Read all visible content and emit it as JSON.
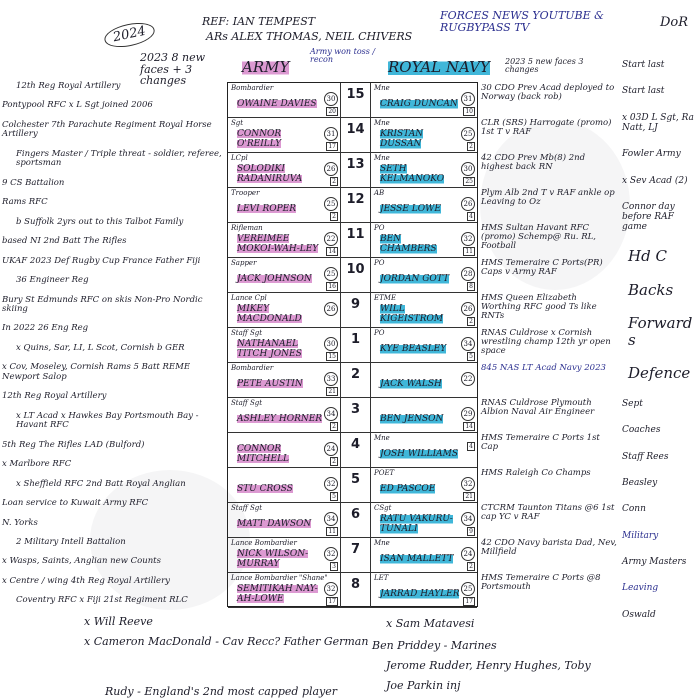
{
  "header": {
    "year": "2024",
    "ref": "REF: IAN TEMPEST",
    "ars": "ARs  ALEX THOMAS, NEIL CHIVERS",
    "broadcast": "FORCES NEWS YOUTUBE & RUGBYPASS TV",
    "army_note": "2023 8 new faces + 3 changes",
    "army_title": "ARMY",
    "army_toss": "Army won toss / recon",
    "navy_title": "ROYAL NAVY",
    "navy_note": "2023 5 new faces 3 changes",
    "dor": "DoR"
  },
  "colors": {
    "army_highlight": "#cd6ebe",
    "navy_highlight": "#1eaad2",
    "ink": "#1d1d2a",
    "blue_ink": "#2b2f8f"
  },
  "rows": [
    {
      "num": "15",
      "army_role": "Bombardier",
      "army_name": "Owaine Davies",
      "army_age": "30",
      "army_cap": "20",
      "navy_role": "Mne",
      "navy_name": "Craig Duncan",
      "navy_age": "31",
      "navy_cap": "10"
    },
    {
      "num": "14",
      "army_role": "Sgt",
      "army_name": "Connor O'Reilly",
      "army_age": "31",
      "army_cap": "17",
      "navy_role": "Mne",
      "navy_name": "Kristan Dussan",
      "navy_age": "25",
      "navy_cap": "2"
    },
    {
      "num": "13",
      "army_role": "LCpl",
      "army_name": "Solodiki Radaniruva",
      "army_age": "26",
      "army_cap": "2",
      "navy_role": "Mne",
      "navy_name": "Seth Kelmanoko",
      "navy_age": "30",
      "navy_cap": "25"
    },
    {
      "num": "12",
      "army_role": "Trooper",
      "army_name": "Levi Roper",
      "army_age": "25",
      "army_cap": "2",
      "navy_role": "AB",
      "navy_name": "Jesse Lowe",
      "navy_age": "26",
      "navy_cap": "4"
    },
    {
      "num": "11",
      "army_role": "Rifleman",
      "army_name": "Vereimee Mokoi-Wah-Ley",
      "army_age": "22",
      "army_cap": "14",
      "navy_role": "PO",
      "navy_name": "Ben Chambers",
      "navy_age": "32",
      "navy_cap": "11"
    },
    {
      "num": "10",
      "army_role": "Sapper",
      "army_name": "Jack Johnson",
      "army_age": "25",
      "army_cap": "16",
      "navy_role": "PO",
      "navy_name": "Jordan Gott",
      "navy_age": "28",
      "navy_cap": "8"
    },
    {
      "num": "9",
      "army_role": "Lance Cpl",
      "army_name": "Mikey MacDonald",
      "army_age": "26",
      "army_cap": "",
      "navy_role": "ETME",
      "navy_name": "Will Kigeistrom",
      "navy_age": "26",
      "navy_cap": "2"
    },
    {
      "num": "1",
      "army_role": "Staff Sgt",
      "army_name": "Nathanael Titch Jones",
      "army_age": "30",
      "army_cap": "15",
      "navy_role": "PO",
      "navy_name": "Kye Beasley",
      "navy_age": "34",
      "navy_cap": "5"
    },
    {
      "num": "2",
      "army_role": "Bombardier",
      "army_name": "Pete Austin",
      "army_age": "33",
      "army_cap": "21",
      "navy_role": "",
      "navy_name": "Jack Walsh",
      "navy_age": "22",
      "navy_cap": ""
    },
    {
      "num": "3",
      "army_role": "Staff Sgt",
      "army_name": "Ashley Horner",
      "army_age": "34",
      "army_cap": "2",
      "navy_role": "",
      "navy_name": "Ben Jenson",
      "navy_age": "29",
      "navy_cap": "14"
    },
    {
      "num": "4",
      "army_role": "",
      "army_name": "Connor Mitchell",
      "army_age": "24",
      "army_cap": "2",
      "navy_role": "Mne",
      "navy_name": "Josh Williams",
      "navy_age": "",
      "navy_cap": "4"
    },
    {
      "num": "5",
      "army_role": "",
      "army_name": "Stu Cross",
      "army_age": "32",
      "army_cap": "5",
      "navy_role": "POET",
      "navy_name": "Ed Pascoe",
      "navy_age": "32",
      "navy_cap": "21"
    },
    {
      "num": "6",
      "army_role": "Staff Sgt",
      "army_name": "Matt Dawson",
      "army_age": "34",
      "army_cap": "11",
      "navy_role": "CSgt",
      "navy_name": "Ratu Vakuru-Tunali",
      "navy_age": "34",
      "navy_cap": "9"
    },
    {
      "num": "7",
      "army_role": "Lance Bombardier",
      "army_name": "Nick Wilson-Murray",
      "army_age": "32",
      "army_cap": "3",
      "navy_role": "Mne",
      "navy_name": "Isan Mallett",
      "navy_age": "24",
      "navy_cap": "2"
    },
    {
      "num": "8",
      "army_role": "Lance Bombardier \"Shane\"",
      "army_name": "Semitikah Nay-Ah-Lowe",
      "army_age": "32",
      "army_cap": "17",
      "navy_role": "LET",
      "navy_name": "Jarrad Hayler",
      "navy_age": "25",
      "navy_cap": "17"
    }
  ],
  "left_notes": [
    "12th Reg Royal Artillery",
    "Pontypool RFC  x L Sgt  joined 2006",
    "Colchester   7th Parachute Regiment Royal Horse Artillery",
    "Fingers Master / Triple threat - soldier, referee, sportsman",
    "9 CS Battalion",
    "Rams RFC",
    "b Suffolk  2yrs out to this  Talbot Family",
    "based NI   2nd Batt The Rifles",
    "UKAF 2023 Def Rugby Cup France  Father Fiji",
    "36 Engineer Reg",
    "Bury St Edmunds RFC  on skis Non-Pro Nordic skiing",
    "In 2022  26 Eng Reg",
    "x Quins, Sar, LI, L Scot, Cornish   b GER",
    "x Cov, Moseley, Cornish Rams   5 Batt REME  Newport Salop",
    "12th Reg Royal Artillery",
    "x LT Acad x Hawkes Bay  Portsmouth Bay - Havant RFC",
    "5th Reg The Rifles LAD (Bulford)",
    "x Marlbore RFC",
    "x Sheffield RFC  2nd Batt Royal Anglian",
    "Loan service to Kuwait Army RFC",
    "N. Yorks",
    "2 Military Intell Battalion",
    "x Wasps, Saints, Anglian new Counts",
    "x Centre / wing   4th Reg Royal Artillery",
    "Coventry RFC  x Fiji  21st Regiment RLC"
  ],
  "right_notes": [
    "30 CDO  Prev Acad  deployed to Norway (back rob)",
    "CLR (SRS)  Harrogate (promo)  1st T v RAF",
    "42 CDO  Prev Mb(8)  2nd highest back RN",
    "Plym Alb  2nd T v RAF  ankle op  Leaving to Oz",
    "HMS Sultan  Havant RFC (promo)  Schemp@ Ru. RL, Football",
    "HMS Temeraire  C Ports(PR)  Caps v Army  RAF",
    "HMS Queen Elizabeth  Worthing RFC  good Ts like RNTs",
    "RNAS Culdrose  x Cornish wrestling champ  12th yr open space",
    "845 NAS  LT Acad  Navy 2023",
    "RNAS Culdrose  Plymouth Albion  Naval Air Engineer",
    "HMS Temeraire  C Ports  1st Cap",
    "HMS Raleigh  Co Champs",
    "CTCRM  Taunton Titans  @6 1st cap  YC v RAF",
    "42 CDO  Navy barista  Dad, Nev, Millfield",
    "HMS Temeraire  C Ports  @8 Portsmouth"
  ],
  "bottom_notes": [
    "x Will Reeve",
    "x Cameron MacDonald - Cav Recc?  Father German",
    "x Sam Matavesi",
    "Ben Priddey - Marines",
    "Jerome Rudder, Henry Hughes, Toby",
    "Joe Parkin inj",
    "Rudy - England's 2nd most capped player"
  ],
  "far_right_notes": [
    "Start last",
    "Start last",
    "x 03D L Sgt, Ra Natt, LJ",
    "Fowler Army",
    "x Sev Acad (2)",
    "Connor day before RAF game",
    "Hd C",
    "Backs",
    "Forwards",
    "Defence",
    "Sept",
    "Coaches",
    "Staff Rees",
    "Beasley",
    "Conn",
    "Military",
    "Army Masters",
    "Leaving",
    "Oswald"
  ]
}
